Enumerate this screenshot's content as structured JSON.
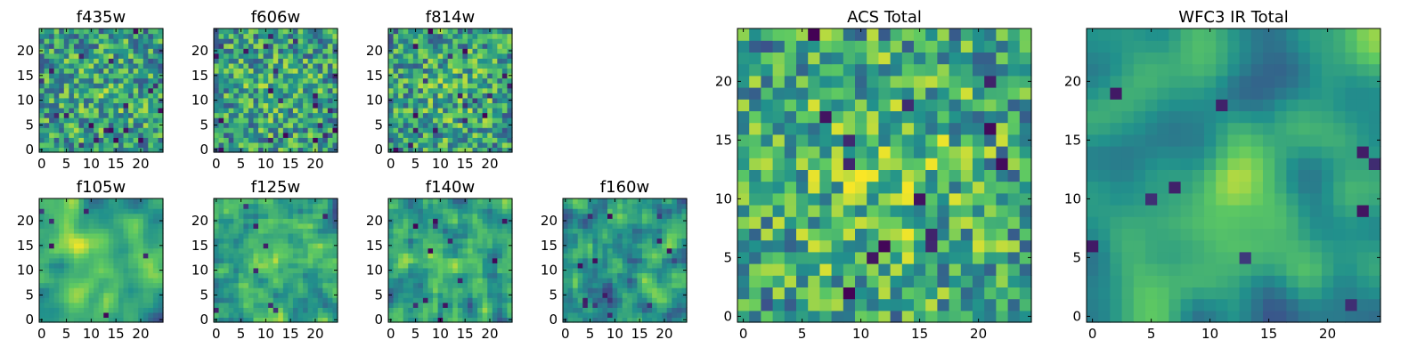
{
  "figure": {
    "colormap": "viridis",
    "colormap_stops": [
      "#440154",
      "#3b528b",
      "#21918c",
      "#5ec962",
      "#fde725"
    ],
    "frame_color": "#000000"
  },
  "chart_data": [
    {
      "type": "heatmap",
      "title": "f435w",
      "grid": [
        25,
        25
      ],
      "seed": 11,
      "smooth": 0,
      "bias": 0.1,
      "outliers": 20,
      "xticks": [
        0,
        5,
        10,
        15,
        20
      ],
      "yticks": [
        0,
        5,
        10,
        15,
        20
      ]
    },
    {
      "type": "heatmap",
      "title": "f606w",
      "grid": [
        25,
        25
      ],
      "seed": 23,
      "smooth": 0,
      "bias": 0.1,
      "outliers": 22,
      "xticks": [
        0,
        5,
        10,
        15,
        20
      ],
      "yticks": [
        0,
        5,
        10,
        15,
        20
      ]
    },
    {
      "type": "heatmap",
      "title": "f814w",
      "grid": [
        25,
        25
      ],
      "seed": 37,
      "smooth": 0,
      "bias": 0.12,
      "outliers": 18,
      "xticks": [
        0,
        5,
        10,
        15,
        20
      ],
      "yticks": [
        0,
        5,
        10,
        15,
        20
      ]
    },
    {
      "type": "heatmap",
      "title": "f105w",
      "grid": [
        25,
        25
      ],
      "seed": 41,
      "smooth": 2,
      "bias": 0.2,
      "outliers": 6,
      "xticks": [
        0,
        5,
        10,
        15,
        20
      ],
      "yticks": [
        0,
        5,
        10,
        15,
        20
      ]
    },
    {
      "type": "heatmap",
      "title": "f125w",
      "grid": [
        25,
        25
      ],
      "seed": 53,
      "smooth": 1,
      "bias": 0.15,
      "outliers": 8,
      "xticks": [
        0,
        5,
        10,
        15,
        20
      ],
      "yticks": [
        0,
        5,
        10,
        15,
        20
      ]
    },
    {
      "type": "heatmap",
      "title": "f140w",
      "grid": [
        25,
        25
      ],
      "seed": 67,
      "smooth": 1,
      "bias": 0.05,
      "outliers": 12,
      "xticks": [
        0,
        5,
        10,
        15,
        20
      ],
      "yticks": [
        0,
        5,
        10,
        15,
        20
      ]
    },
    {
      "type": "heatmap",
      "title": "f160w",
      "grid": [
        25,
        25
      ],
      "seed": 79,
      "smooth": 1,
      "bias": 0.0,
      "outliers": 14,
      "xticks": [
        0,
        5,
        10,
        15,
        20
      ],
      "yticks": [
        0,
        5,
        10,
        15,
        20
      ]
    },
    {
      "type": "heatmap",
      "title": "ACS Total",
      "grid": [
        25,
        25
      ],
      "seed": 97,
      "smooth": 0,
      "bias": 0.22,
      "outliers": 14,
      "xticks": [
        0,
        5,
        10,
        15,
        20
      ],
      "yticks": [
        0,
        5,
        10,
        15,
        20
      ]
    },
    {
      "type": "heatmap",
      "title": "WFC3 IR Total",
      "grid": [
        25,
        25
      ],
      "seed": 101,
      "smooth": 3,
      "bias": 0.18,
      "outliers": 10,
      "xticks": [
        0,
        5,
        10,
        15,
        20
      ],
      "yticks": [
        0,
        5,
        10,
        15,
        20
      ]
    }
  ]
}
